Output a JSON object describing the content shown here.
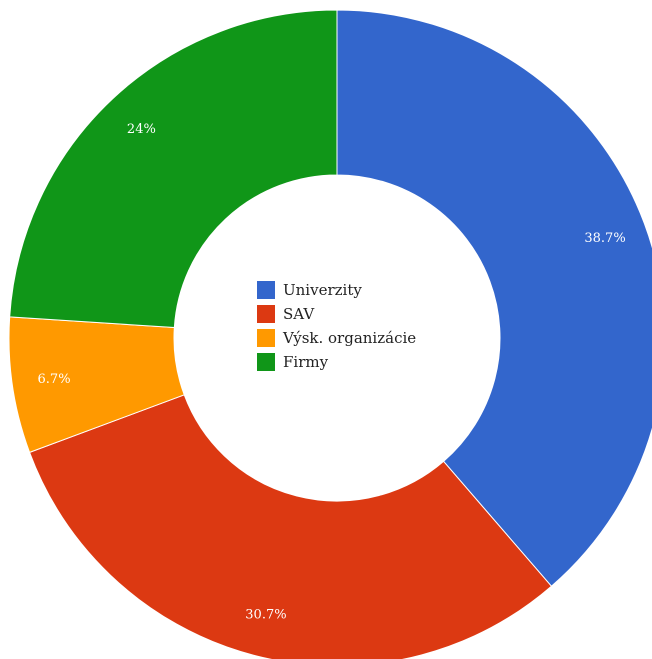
{
  "chart_data": {
    "type": "pie",
    "donut": true,
    "categories": [
      "Univerzity",
      "SAV",
      "Výsk. organizácie",
      "Firmy"
    ],
    "values": [
      38.7,
      30.7,
      6.7,
      24.0
    ],
    "value_labels": [
      "38.7%",
      "30.7%",
      "6.7%",
      "24%"
    ],
    "colors": [
      "#3366cc",
      "#dc3912",
      "#ff9900",
      "#109618"
    ],
    "legend_position": "center",
    "start_angle": "top",
    "direction": "clockwise"
  }
}
